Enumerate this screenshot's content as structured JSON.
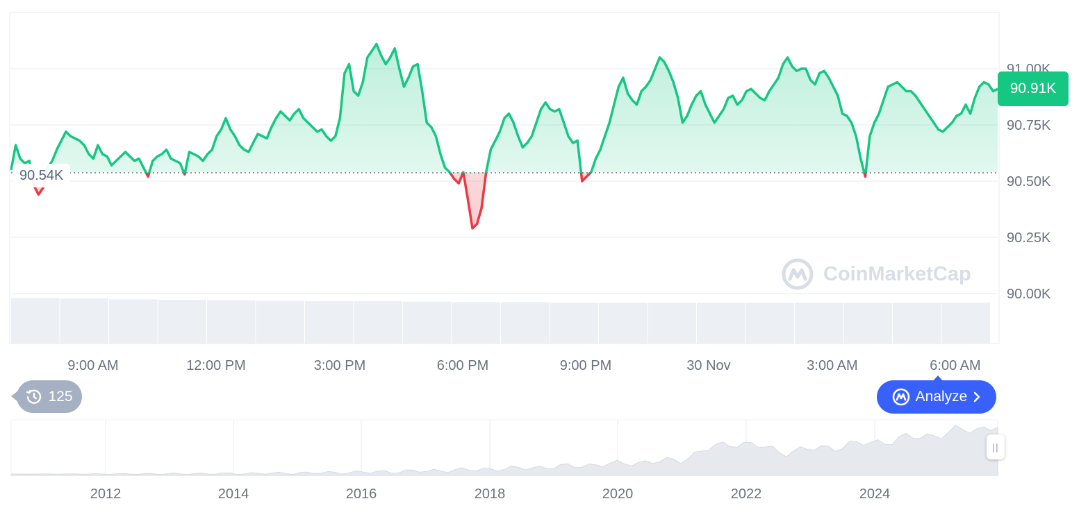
{
  "price_axis": {
    "ticks": [
      "91.00K",
      "90.75K",
      "90.50K",
      "90.25K",
      "90.00K"
    ],
    "tick_values": [
      91000,
      90750,
      90500,
      90250,
      90000
    ]
  },
  "time_axis": {
    "ticks": [
      "9:00 AM",
      "12:00 PM",
      "3:00 PM",
      "6:00 PM",
      "9:00 PM",
      "30 Nov",
      "3:00 AM",
      "6:00 AM"
    ]
  },
  "current_price": "90.91K",
  "open_price_label": "90.54K",
  "history": {
    "count": "125",
    "icon": "history-clock-icon"
  },
  "analyze": {
    "label": "Analyze",
    "icon": "coinmarketcap-logo-icon",
    "chevron": "chevron-right-icon"
  },
  "watermark": {
    "text": "CoinMarketCap",
    "icon": "coinmarketcap-logo-icon"
  },
  "navigator": {
    "ticks": [
      "2012",
      "2014",
      "2016",
      "2018",
      "2020",
      "2022",
      "2024"
    ],
    "handle_icon": "drag-handle-icon"
  },
  "colors": {
    "up": "#16c784",
    "down": "#ea3943",
    "analyze": "#3861fb",
    "grid": "#eff2f5",
    "text": "#6b7280"
  },
  "chart_data": {
    "type": "area",
    "baseline": 90540,
    "ylim": [
      90000,
      91100
    ],
    "x_tick_labels": [
      "9:00 AM",
      "12:00 PM",
      "3:00 PM",
      "6:00 PM",
      "9:00 PM",
      "30 Nov",
      "3:00 AM",
      "6:00 AM"
    ],
    "series": [
      {
        "values": [
          90550,
          90660,
          90600,
          90580,
          90590,
          90480,
          90440,
          90470,
          90560,
          90590,
          90640,
          90680,
          90720,
          90700,
          90690,
          90680,
          90660,
          90620,
          90600,
          90660,
          90620,
          90610,
          90570,
          90590,
          90610,
          90630,
          90610,
          90590,
          90600,
          90560,
          90520,
          90590,
          90610,
          90620,
          90640,
          90600,
          90590,
          90580,
          90530,
          90630,
          90620,
          90610,
          90590,
          90620,
          90640,
          90700,
          90730,
          90780,
          90730,
          90700,
          90660,
          90640,
          90630,
          90670,
          90710,
          90700,
          90690,
          90740,
          90780,
          90810,
          90790,
          90770,
          90800,
          90820,
          90780,
          90760,
          90740,
          90720,
          90730,
          90700,
          90680,
          90700,
          90780,
          90980,
          91020,
          90900,
          90880,
          90940,
          91050,
          91080,
          91110,
          91060,
          91020,
          91050,
          91090,
          91000,
          90920,
          90960,
          91010,
          91020,
          90900,
          90760,
          90740,
          90700,
          90620,
          90560,
          90540,
          90510,
          90490,
          90540,
          90420,
          90290,
          90310,
          90380,
          90540,
          90640,
          90680,
          90720,
          90780,
          90800,
          90760,
          90700,
          90650,
          90670,
          90700,
          90760,
          90820,
          90850,
          90820,
          90810,
          90820,
          90760,
          90700,
          90670,
          90680,
          90500,
          90520,
          90540,
          90600,
          90640,
          90700,
          90760,
          90840,
          90920,
          90960,
          90890,
          90860,
          90840,
          90900,
          90920,
          90950,
          91000,
          91050,
          91030,
          90990,
          90940,
          90870,
          90760,
          90790,
          90840,
          90880,
          90900,
          90840,
          90800,
          90760,
          90790,
          90820,
          90870,
          90880,
          90840,
          90860,
          90900,
          90910,
          90890,
          90870,
          90860,
          90900,
          90930,
          90960,
          91020,
          91050,
          91010,
          90990,
          91000,
          91000,
          90950,
          90930,
          90980,
          90990,
          90960,
          90920,
          90880,
          90800,
          90790,
          90760,
          90700,
          90600,
          90520,
          90700,
          90760,
          90800,
          90860,
          90920,
          90930,
          90940,
          90920,
          90900,
          90900,
          90880,
          90850,
          90820,
          90790,
          90760,
          90730,
          90720,
          90740,
          90760,
          90790,
          90800,
          90840,
          90800,
          90870,
          90920,
          90940,
          90930,
          90900,
          90910
        ]
      }
    ],
    "volume": [
      98,
      97,
      95,
      94,
      93,
      92,
      91,
      91,
      90,
      89,
      89,
      88,
      88,
      88,
      88,
      88,
      88,
      88,
      88,
      88
    ],
    "navigator_x_ticks": [
      "2012",
      "2014",
      "2016",
      "2018",
      "2020",
      "2022",
      "2024"
    ]
  }
}
